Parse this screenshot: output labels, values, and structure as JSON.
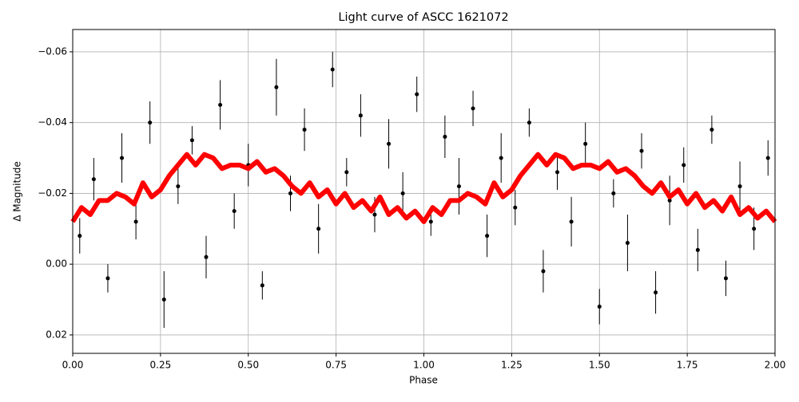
{
  "chart_data": {
    "type": "errorbar-scatter-line",
    "title": "Light curve of ASCC 1621072",
    "xlabel": "Phase",
    "ylabel": "Δ Magnitude",
    "xlim": [
      0,
      2
    ],
    "ylim": [
      -0.0663,
      0.0252
    ],
    "y_inverted": true,
    "grid": true,
    "xticks": [
      {
        "value": 0,
        "label": "0.00"
      },
      0.25,
      {
        "value": 0.5,
        "label": "0.50"
      },
      0.75,
      {
        "value": 1,
        "label": "1.00"
      },
      1.25,
      {
        "value": 1.5,
        "label": "1.50"
      },
      1.75,
      {
        "value": 2,
        "label": "2.00"
      }
    ],
    "yticks": [
      {
        "value": -0.06,
        "label": "−0.06"
      },
      {
        "value": -0.04,
        "label": "−0.04"
      },
      {
        "value": -0.02,
        "label": "−0.02"
      },
      {
        "value": 0,
        "label": "0.00"
      },
      0.02
    ],
    "points": {
      "color": "#000000",
      "x": [
        0.02,
        0.06,
        0.1,
        0.14,
        0.18,
        0.22,
        0.26,
        0.3,
        0.34,
        0.38,
        0.42,
        0.46,
        0.5,
        0.54,
        0.58,
        0.62,
        0.66,
        0.7,
        0.74,
        0.78,
        0.82,
        0.86,
        0.9,
        0.94,
        0.98,
        1.02,
        1.06,
        1.1,
        1.14,
        1.18,
        1.22,
        1.26,
        1.3,
        1.34,
        1.38,
        1.42,
        1.46,
        1.5,
        1.54,
        1.58,
        1.62,
        1.66,
        1.7,
        1.74,
        1.78,
        1.82,
        1.86,
        1.9,
        1.94,
        1.98
      ],
      "values": [
        -0.008,
        -0.024,
        0.004,
        -0.03,
        -0.012,
        -0.04,
        0.01,
        -0.022,
        -0.035,
        -0.002,
        -0.045,
        -0.015,
        -0.028,
        0.006,
        -0.05,
        -0.02,
        -0.038,
        -0.01,
        -0.055,
        -0.026,
        -0.042,
        -0.014,
        -0.034,
        -0.02,
        -0.048,
        -0.012,
        -0.036,
        -0.022,
        -0.044,
        -0.008,
        -0.03,
        -0.016,
        -0.04,
        0.002,
        -0.026,
        -0.012,
        -0.034,
        0.012,
        -0.02,
        -0.006,
        -0.032,
        0.008,
        -0.018,
        -0.028,
        -0.004,
        -0.038,
        0.004,
        -0.022,
        -0.01,
        -0.03
      ],
      "errors": [
        0.005,
        0.006,
        0.004,
        0.007,
        0.005,
        0.006,
        0.008,
        0.005,
        0.004,
        0.006,
        0.007,
        0.005,
        0.006,
        0.004,
        0.008,
        0.005,
        0.006,
        0.007,
        0.005,
        0.004,
        0.006,
        0.005,
        0.007,
        0.006,
        0.005,
        0.004,
        0.006,
        0.008,
        0.005,
        0.006,
        0.007,
        0.005,
        0.004,
        0.006,
        0.005,
        0.007,
        0.006,
        0.005,
        0.004,
        0.008,
        0.005,
        0.006,
        0.007,
        0.005,
        0.006,
        0.004,
        0.005,
        0.007,
        0.006,
        0.005
      ]
    },
    "series": [
      {
        "color": "#ff0000",
        "x": [
          0,
          0.025,
          0.05,
          0.075,
          0.1,
          0.125,
          0.15,
          0.175,
          0.2,
          0.225,
          0.25,
          0.275,
          0.3,
          0.325,
          0.35,
          0.375,
          0.4,
          0.425,
          0.45,
          0.475,
          0.5,
          0.525,
          0.55,
          0.575,
          0.6,
          0.625,
          0.65,
          0.675,
          0.7,
          0.725,
          0.75,
          0.775,
          0.8,
          0.825,
          0.85,
          0.875,
          0.9,
          0.925,
          0.95,
          0.975,
          1,
          1.025,
          1.05,
          1.075,
          1.1,
          1.125,
          1.15,
          1.175,
          1.2,
          1.225,
          1.25,
          1.275,
          1.3,
          1.325,
          1.35,
          1.375,
          1.4,
          1.425,
          1.45,
          1.475,
          1.5,
          1.525,
          1.55,
          1.575,
          1.6,
          1.625,
          1.65,
          1.675,
          1.7,
          1.725,
          1.75,
          1.775,
          1.8,
          1.825,
          1.85,
          1.875,
          1.9,
          1.925,
          1.95,
          1.975,
          2
        ],
        "values": [
          -0.012,
          -0.016,
          -0.014,
          -0.018,
          -0.018,
          -0.02,
          -0.019,
          -0.017,
          -0.023,
          -0.019,
          -0.021,
          -0.025,
          -0.028,
          -0.031,
          -0.028,
          -0.031,
          -0.03,
          -0.027,
          -0.028,
          -0.028,
          -0.027,
          -0.029,
          -0.026,
          -0.027,
          -0.025,
          -0.022,
          -0.02,
          -0.023,
          -0.019,
          -0.021,
          -0.017,
          -0.02,
          -0.016,
          -0.018,
          -0.015,
          -0.019,
          -0.014,
          -0.016,
          -0.013,
          -0.015,
          -0.012,
          -0.016,
          -0.014,
          -0.018,
          -0.018,
          -0.02,
          -0.019,
          -0.017,
          -0.023,
          -0.019,
          -0.021,
          -0.025,
          -0.028,
          -0.031,
          -0.028,
          -0.031,
          -0.03,
          -0.027,
          -0.028,
          -0.028,
          -0.027,
          -0.029,
          -0.026,
          -0.027,
          -0.025,
          -0.022,
          -0.02,
          -0.023,
          -0.019,
          -0.021,
          -0.017,
          -0.02,
          -0.016,
          -0.018,
          -0.015,
          -0.019,
          -0.014,
          -0.016,
          -0.013,
          -0.015,
          -0.012
        ]
      }
    ]
  }
}
